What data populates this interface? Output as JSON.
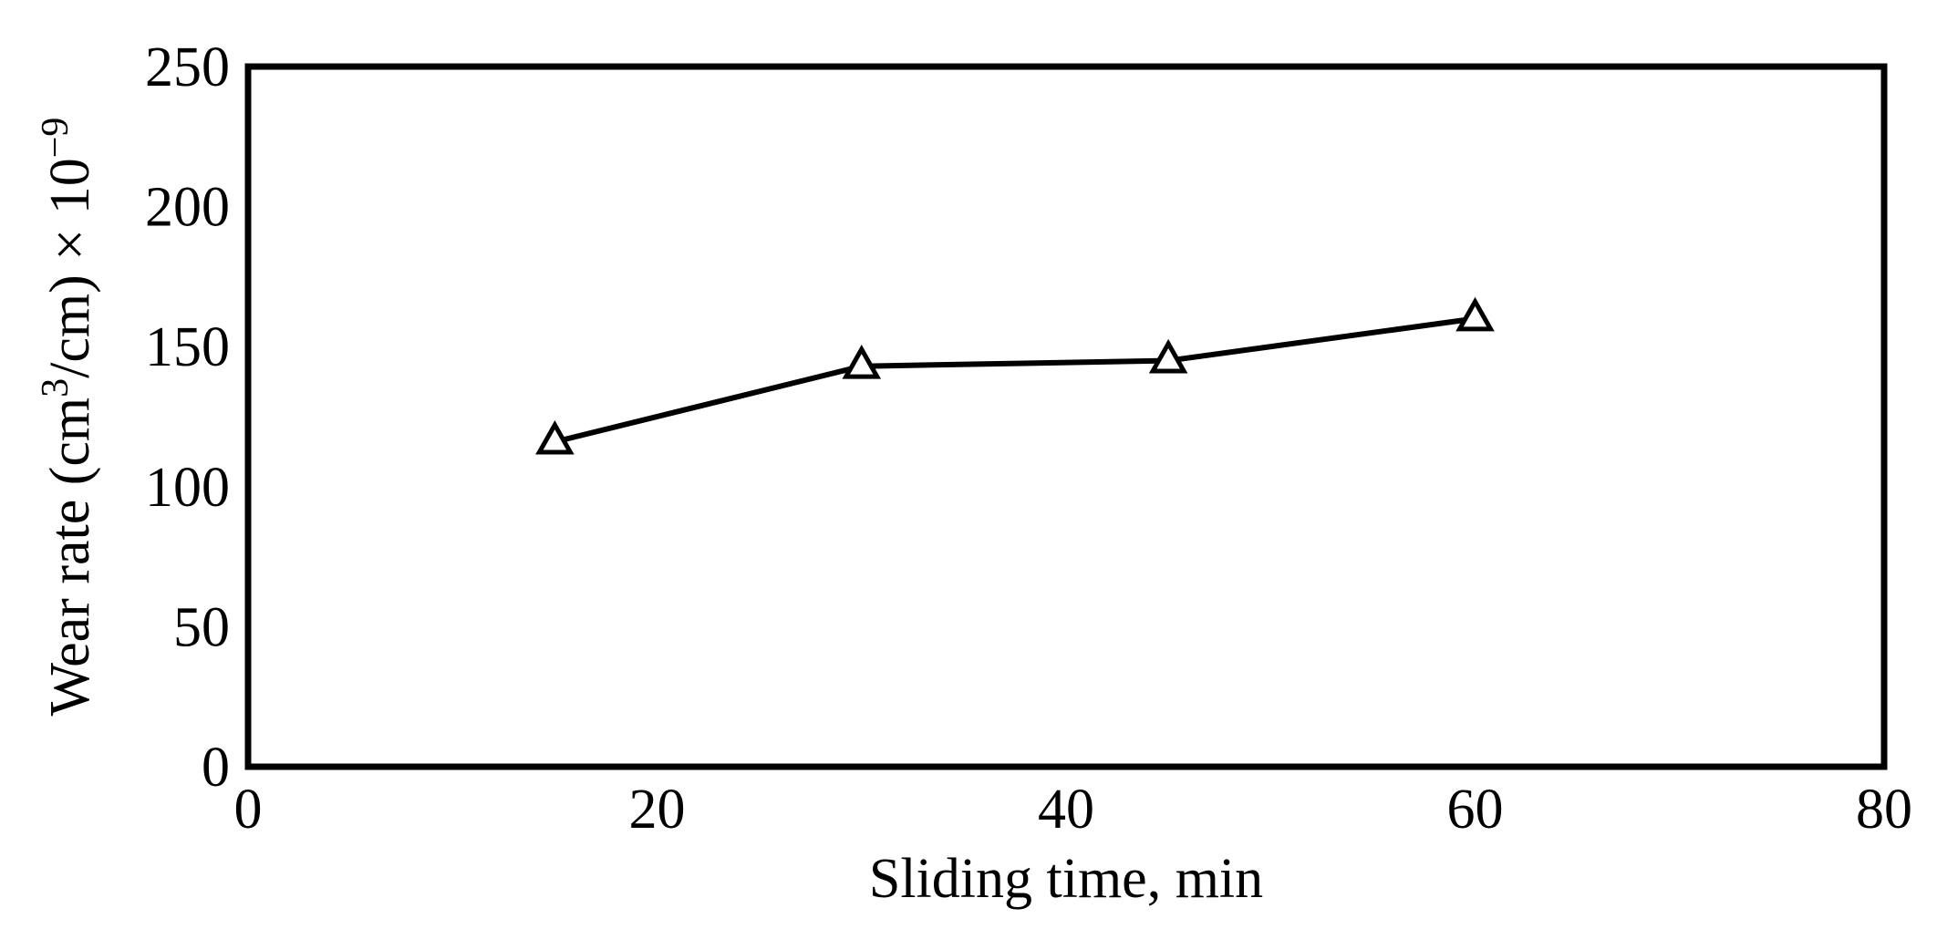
{
  "chart_data": {
    "type": "line",
    "title": "",
    "xlabel": "Sliding time, min",
    "ylabel": {
      "main": "Wear rate (cm",
      "sup1": "3",
      "mid": "/cm) × 10",
      "sup2": "−9"
    },
    "xlim": [
      0,
      80
    ],
    "ylim": [
      0,
      250
    ],
    "x_ticks": [
      0,
      20,
      40,
      60,
      80
    ],
    "y_ticks": [
      0,
      50,
      100,
      150,
      200,
      250
    ],
    "grid": false,
    "legend": "none",
    "series": [
      {
        "marker": "open-triangle",
        "color": "#000000",
        "points": [
          {
            "x": 15,
            "y": 116
          },
          {
            "x": 30,
            "y": 143
          },
          {
            "x": 45,
            "y": 145
          },
          {
            "x": 60,
            "y": 160
          }
        ]
      }
    ]
  }
}
